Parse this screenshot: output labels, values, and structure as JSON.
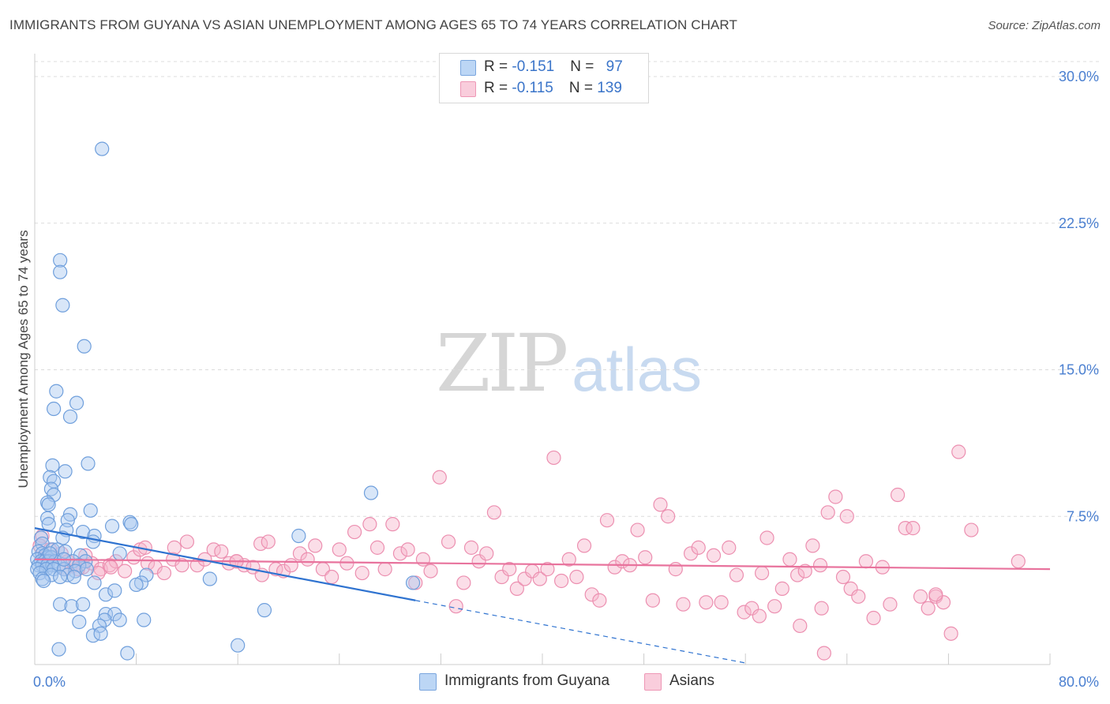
{
  "title": "IMMIGRANTS FROM GUYANA VS ASIAN UNEMPLOYMENT AMONG AGES 65 TO 74 YEARS CORRELATION CHART",
  "source": "Source: ZipAtlas.com",
  "watermark": {
    "zip": "ZIP",
    "atlas": "atlas"
  },
  "legend": {
    "rows": [
      {
        "r_label": "R = ",
        "r_value": "-0.151",
        "n_label": "N = ",
        "n_value": "97",
        "color": "#a8c8f0"
      },
      {
        "r_label": "R = ",
        "r_value": "-0.115",
        "n_label": "N = ",
        "n_value": "139",
        "color": "#f6b6cc"
      }
    ]
  },
  "bottom_legend": [
    {
      "label": "Immigrants from Guyana",
      "color": "#a8c8f0"
    },
    {
      "label": "Asians",
      "color": "#f6b6cc"
    }
  ],
  "chart_data": {
    "type": "scatter",
    "title": "IMMIGRANTS FROM GUYANA VS ASIAN UNEMPLOYMENT AMONG AGES 65 TO 74 YEARS CORRELATION CHART",
    "xlabel": "",
    "ylabel": "Unemployment Among Ages 65 to 74 years",
    "xlim": [
      0,
      80
    ],
    "ylim": [
      0,
      30
    ],
    "x_tick_labels": [
      {
        "value": 0,
        "label": "0.0%"
      },
      {
        "value": 80,
        "label": "80.0%"
      }
    ],
    "y_tick_labels": [
      {
        "value": 7.5,
        "label": "7.5%"
      },
      {
        "value": 15,
        "label": "15.0%"
      },
      {
        "value": 22.5,
        "label": "22.5%"
      },
      {
        "value": 30,
        "label": "30.0%"
      }
    ],
    "grid": true,
    "series": [
      {
        "name": "Immigrants from Guyana",
        "color": "#a8c8f0",
        "stroke": "#6f9fdc",
        "line_color": "#2f73d0",
        "trend": {
          "x0": 0,
          "y0": 6.9,
          "x1": 30,
          "y1": 3.2,
          "dashed_to_x": 56,
          "dashed_to_y": 0
        },
        "points": [
          [
            5.3,
            26.3
          ],
          [
            2.0,
            20.6
          ],
          [
            2.0,
            20.0
          ],
          [
            2.2,
            18.3
          ],
          [
            3.9,
            16.2
          ],
          [
            1.7,
            13.9
          ],
          [
            3.3,
            13.3
          ],
          [
            1.5,
            13.0
          ],
          [
            2.8,
            12.6
          ],
          [
            1.4,
            10.1
          ],
          [
            4.2,
            10.2
          ],
          [
            2.4,
            9.8
          ],
          [
            1.2,
            9.5
          ],
          [
            1.5,
            9.3
          ],
          [
            1.3,
            8.9
          ],
          [
            1.5,
            8.6
          ],
          [
            1.0,
            8.2
          ],
          [
            1.1,
            8.1
          ],
          [
            4.4,
            7.8
          ],
          [
            2.8,
            7.6
          ],
          [
            1.0,
            7.4
          ],
          [
            2.6,
            7.3
          ],
          [
            1.1,
            7.1
          ],
          [
            7.5,
            7.2
          ],
          [
            7.6,
            7.1
          ],
          [
            6.1,
            7.0
          ],
          [
            2.5,
            6.8
          ],
          [
            3.8,
            6.7
          ],
          [
            4.7,
            6.5
          ],
          [
            0.5,
            6.4
          ],
          [
            2.2,
            6.4
          ],
          [
            4.6,
            6.2
          ],
          [
            0.6,
            6.1
          ],
          [
            1.4,
            5.8
          ],
          [
            1.8,
            5.8
          ],
          [
            2.4,
            5.7
          ],
          [
            0.3,
            5.7
          ],
          [
            0.6,
            5.6
          ],
          [
            0.8,
            5.5
          ],
          [
            1.0,
            5.4
          ],
          [
            1.3,
            5.4
          ],
          [
            3.6,
            5.5
          ],
          [
            0.2,
            5.3
          ],
          [
            0.5,
            5.2
          ],
          [
            0.8,
            5.2
          ],
          [
            1.1,
            5.2
          ],
          [
            1.6,
            5.2
          ],
          [
            3.0,
            5.2
          ],
          [
            4.0,
            5.2
          ],
          [
            0.3,
            5.0
          ],
          [
            0.6,
            5.0
          ],
          [
            1.0,
            5.0
          ],
          [
            1.4,
            5.0
          ],
          [
            1.9,
            5.0
          ],
          [
            3.5,
            5.0
          ],
          [
            0.2,
            4.8
          ],
          [
            0.9,
            4.8
          ],
          [
            1.5,
            4.8
          ],
          [
            2.3,
            4.8
          ],
          [
            3.2,
            4.7
          ],
          [
            4.1,
            4.8
          ],
          [
            0.4,
            4.6
          ],
          [
            1.3,
            4.5
          ],
          [
            2.6,
            4.5
          ],
          [
            0.6,
            4.3
          ],
          [
            2.0,
            4.4
          ],
          [
            3.1,
            4.4
          ],
          [
            0.7,
            4.2
          ],
          [
            6.7,
            5.6
          ],
          [
            8.8,
            4.5
          ],
          [
            8.4,
            4.1
          ],
          [
            4.7,
            4.1
          ],
          [
            26.5,
            8.7
          ],
          [
            20.8,
            6.5
          ],
          [
            13.8,
            4.3
          ],
          [
            29.8,
            4.1
          ],
          [
            5.6,
            3.5
          ],
          [
            6.3,
            3.7
          ],
          [
            2.0,
            3.0
          ],
          [
            2.9,
            2.9
          ],
          [
            3.8,
            3.0
          ],
          [
            18.1,
            2.7
          ],
          [
            5.6,
            2.5
          ],
          [
            6.3,
            2.5
          ],
          [
            3.5,
            2.1
          ],
          [
            5.5,
            2.2
          ],
          [
            6.7,
            2.2
          ],
          [
            8.6,
            2.2
          ],
          [
            5.1,
            1.9
          ],
          [
            4.6,
            1.4
          ],
          [
            5.2,
            1.5
          ],
          [
            1.9,
            0.7
          ],
          [
            7.3,
            0.5
          ],
          [
            16.0,
            0.9
          ],
          [
            8.0,
            4.0
          ],
          [
            2.3,
            5.3
          ],
          [
            1.2,
            5.6
          ]
        ]
      },
      {
        "name": "Asians",
        "color": "#f6b6cc",
        "stroke": "#ec8fb0",
        "line_color": "#e8739d",
        "trend": {
          "x0": 0,
          "y0": 5.3,
          "x1": 80,
          "y1": 4.8
        },
        "points": [
          [
            0.6,
            6.5
          ],
          [
            0.4,
            6.0
          ],
          [
            1.2,
            5.8
          ],
          [
            2.1,
            5.6
          ],
          [
            0.9,
            5.3
          ],
          [
            2.6,
            5.2
          ],
          [
            3.1,
            5.0
          ],
          [
            3.8,
            4.9
          ],
          [
            4.5,
            5.1
          ],
          [
            5.2,
            4.8
          ],
          [
            5.9,
            5.0
          ],
          [
            6.4,
            5.2
          ],
          [
            7.1,
            4.7
          ],
          [
            7.8,
            5.4
          ],
          [
            8.3,
            5.8
          ],
          [
            8.9,
            5.1
          ],
          [
            9.5,
            4.9
          ],
          [
            10.2,
            4.6
          ],
          [
            10.9,
            5.3
          ],
          [
            11.6,
            5.0
          ],
          [
            12.0,
            6.2
          ],
          [
            12.8,
            5.0
          ],
          [
            13.4,
            5.3
          ],
          [
            14.1,
            5.8
          ],
          [
            14.7,
            5.7
          ],
          [
            15.3,
            5.1
          ],
          [
            15.9,
            5.2
          ],
          [
            16.5,
            5.0
          ],
          [
            17.2,
            4.9
          ],
          [
            17.9,
            4.5
          ],
          [
            17.8,
            6.1
          ],
          [
            18.4,
            6.2
          ],
          [
            19.0,
            4.8
          ],
          [
            19.6,
            4.7
          ],
          [
            20.2,
            5.0
          ],
          [
            20.9,
            5.6
          ],
          [
            21.5,
            5.3
          ],
          [
            22.1,
            6.0
          ],
          [
            22.7,
            4.8
          ],
          [
            23.4,
            4.4
          ],
          [
            24.0,
            5.8
          ],
          [
            24.6,
            5.1
          ],
          [
            25.2,
            6.7
          ],
          [
            25.8,
            4.6
          ],
          [
            26.4,
            7.1
          ],
          [
            27.0,
            5.9
          ],
          [
            27.6,
            4.8
          ],
          [
            28.2,
            7.1
          ],
          [
            28.8,
            5.6
          ],
          [
            29.4,
            5.8
          ],
          [
            30.0,
            4.1
          ],
          [
            30.6,
            5.3
          ],
          [
            31.2,
            4.7
          ],
          [
            31.9,
            9.5
          ],
          [
            32.6,
            6.2
          ],
          [
            33.2,
            2.9
          ],
          [
            33.8,
            4.1
          ],
          [
            34.4,
            5.9
          ],
          [
            35.0,
            5.2
          ],
          [
            35.6,
            5.6
          ],
          [
            36.2,
            7.7
          ],
          [
            36.8,
            4.4
          ],
          [
            37.4,
            4.8
          ],
          [
            38.0,
            3.8
          ],
          [
            38.6,
            4.3
          ],
          [
            39.2,
            4.7
          ],
          [
            39.8,
            4.3
          ],
          [
            40.4,
            4.8
          ],
          [
            40.9,
            10.5
          ],
          [
            41.5,
            4.2
          ],
          [
            42.1,
            5.3
          ],
          [
            42.7,
            4.4
          ],
          [
            43.3,
            6.0
          ],
          [
            43.9,
            3.5
          ],
          [
            44.5,
            3.2
          ],
          [
            45.1,
            7.3
          ],
          [
            45.7,
            4.9
          ],
          [
            46.3,
            5.2
          ],
          [
            46.9,
            5.0
          ],
          [
            47.5,
            6.8
          ],
          [
            48.1,
            5.4
          ],
          [
            48.7,
            3.2
          ],
          [
            49.3,
            8.1
          ],
          [
            49.9,
            7.5
          ],
          [
            50.5,
            4.8
          ],
          [
            51.1,
            3.0
          ],
          [
            51.7,
            5.6
          ],
          [
            52.3,
            5.9
          ],
          [
            52.9,
            3.1
          ],
          [
            53.5,
            5.5
          ],
          [
            54.1,
            3.1
          ],
          [
            54.7,
            5.9
          ],
          [
            55.3,
            4.5
          ],
          [
            55.9,
            2.6
          ],
          [
            56.5,
            2.8
          ],
          [
            57.1,
            2.4
          ],
          [
            57.7,
            6.4
          ],
          [
            58.3,
            2.9
          ],
          [
            58.9,
            3.8
          ],
          [
            59.5,
            5.3
          ],
          [
            60.1,
            4.5
          ],
          [
            60.7,
            4.7
          ],
          [
            61.3,
            6.0
          ],
          [
            61.9,
            5.0
          ],
          [
            62.5,
            7.7
          ],
          [
            63.1,
            8.5
          ],
          [
            63.7,
            4.4
          ],
          [
            64.3,
            3.8
          ],
          [
            64.9,
            3.4
          ],
          [
            65.5,
            5.2
          ],
          [
            66.1,
            2.3
          ],
          [
            66.8,
            4.9
          ],
          [
            67.4,
            3.0
          ],
          [
            68.0,
            8.6
          ],
          [
            68.6,
            6.9
          ],
          [
            69.2,
            6.9
          ],
          [
            69.8,
            3.4
          ],
          [
            70.4,
            2.8
          ],
          [
            71.0,
            3.4
          ],
          [
            71.6,
            3.1
          ],
          [
            72.2,
            1.5
          ],
          [
            72.8,
            10.8
          ],
          [
            73.8,
            6.8
          ],
          [
            77.5,
            5.2
          ],
          [
            57.3,
            4.6
          ],
          [
            60.3,
            1.9
          ],
          [
            62.2,
            0.5
          ],
          [
            62.0,
            2.8
          ],
          [
            71.0,
            3.5
          ],
          [
            64.0,
            7.5
          ],
          [
            2.4,
            4.8
          ],
          [
            1.5,
            5.4
          ],
          [
            3.4,
            4.8
          ],
          [
            4.0,
            5.5
          ],
          [
            8.7,
            5.9
          ],
          [
            5.0,
            4.6
          ],
          [
            11.0,
            5.9
          ],
          [
            15.9,
            5.2
          ],
          [
            6.0,
            4.9
          ]
        ]
      }
    ]
  }
}
